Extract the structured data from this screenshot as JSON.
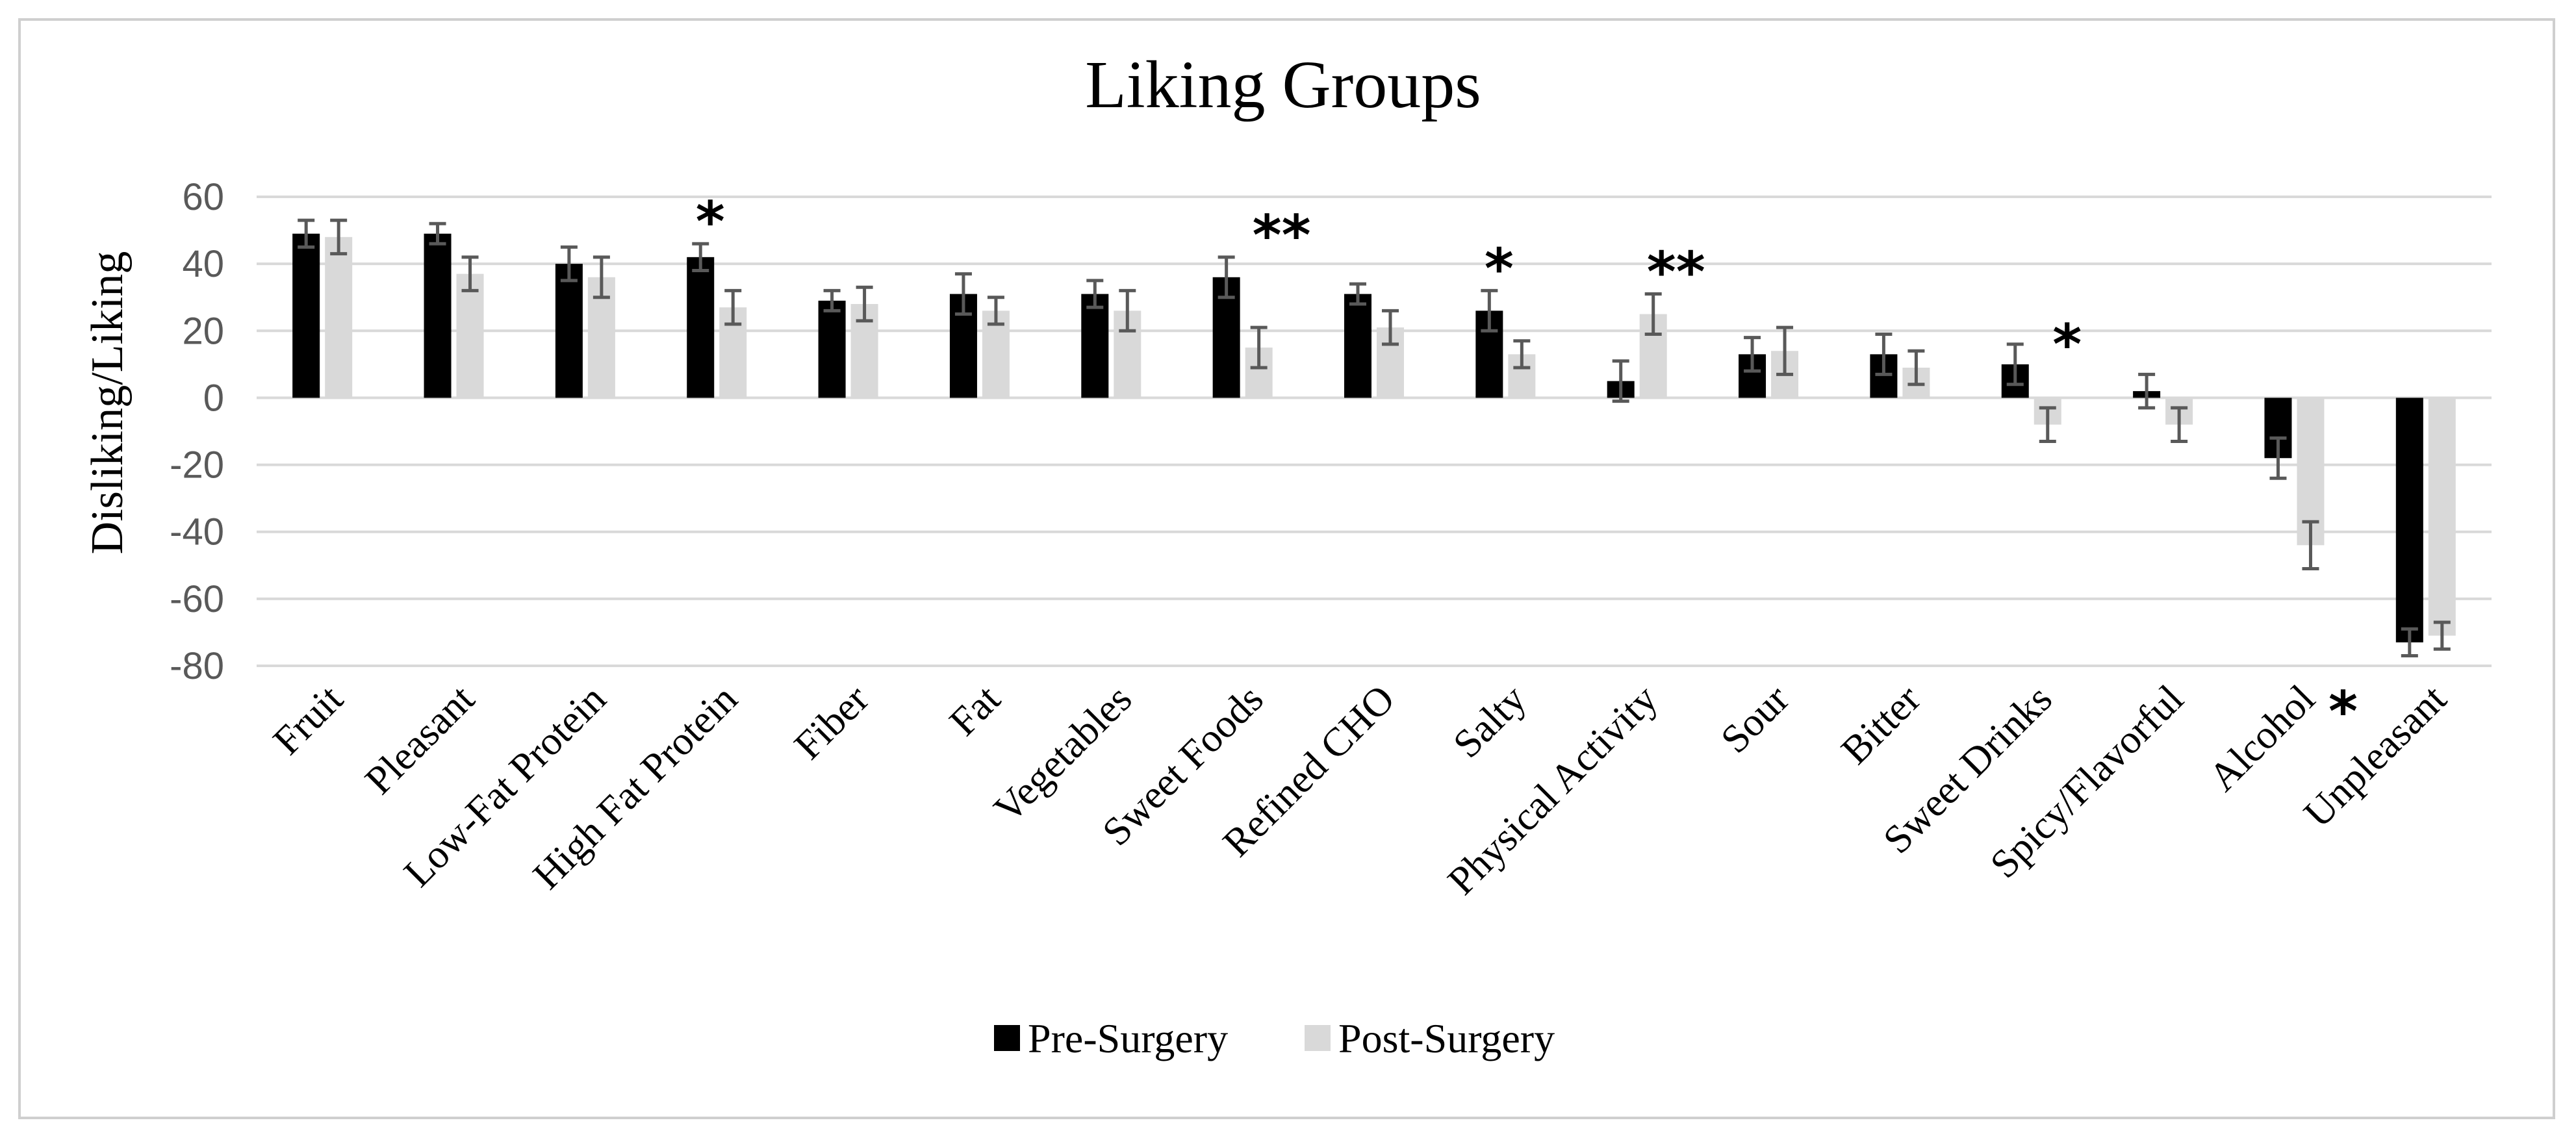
{
  "chart_data": {
    "type": "bar",
    "title": "Liking Groups",
    "xlabel": "",
    "ylabel": "Disliking/Liking",
    "ylim": [
      -80,
      60
    ],
    "yticks": [
      60,
      40,
      20,
      0,
      -20,
      -40,
      -60,
      -80
    ],
    "grid": true,
    "legend_position": "bottom",
    "categories": [
      "Fruit",
      "Pleasant",
      "Low-Fat Protein",
      "High Fat Protein",
      "Fiber",
      "Fat",
      "Vegetables",
      "Sweet Foods",
      "Refined CHO",
      "Salty",
      "Physical Activity",
      "Sour",
      "Bitter",
      "Sweet Drinks",
      "Spicy/Flavorful",
      "Alcohol",
      "Unpleasant"
    ],
    "series": [
      {
        "name": "Pre-Surgery",
        "color": "#000000",
        "values": [
          49,
          49,
          40,
          42,
          29,
          31,
          31,
          36,
          31,
          26,
          5,
          13,
          13,
          10,
          2,
          -18,
          -73
        ],
        "errors": [
          4,
          3,
          5,
          4,
          3,
          6,
          4,
          6,
          3,
          6,
          6,
          5,
          6,
          6,
          5,
          6,
          4
        ]
      },
      {
        "name": "Post-Surgery",
        "color": "#d9d9d9",
        "values": [
          48,
          37,
          36,
          27,
          28,
          26,
          26,
          15,
          21,
          13,
          25,
          14,
          9,
          -8,
          -8,
          -44,
          -71
        ],
        "errors": [
          5,
          5,
          6,
          5,
          5,
          4,
          6,
          6,
          5,
          4,
          6,
          7,
          5,
          5,
          5,
          7,
          4
        ]
      }
    ],
    "annotations": [
      {
        "category": "High Fat Protein",
        "text": "*"
      },
      {
        "category": "Sweet Foods",
        "text": "**"
      },
      {
        "category": "Salty",
        "text": "*"
      },
      {
        "category": "Physical Activity",
        "text": "**"
      },
      {
        "category": "Sweet Drinks",
        "text": "*"
      },
      {
        "category": "Alcohol",
        "text": "*"
      }
    ]
  }
}
